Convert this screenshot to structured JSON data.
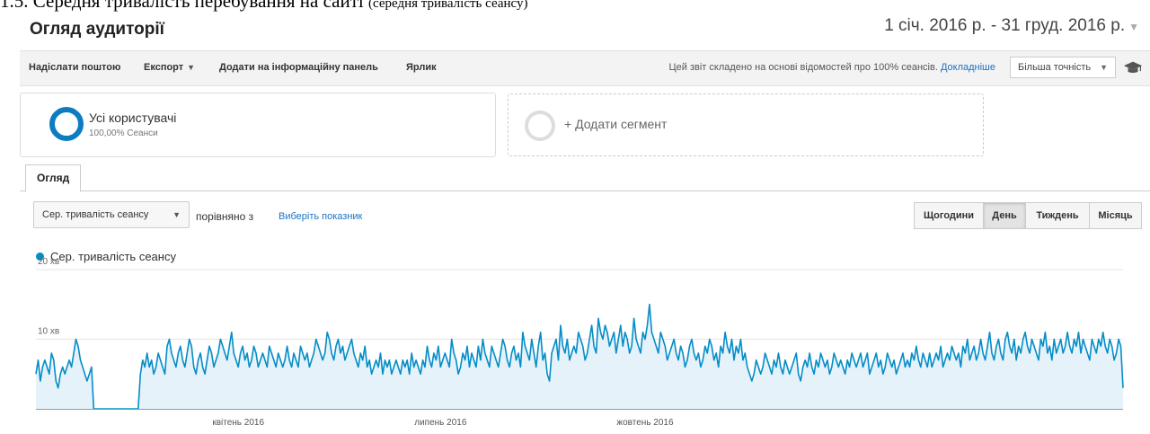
{
  "doc_heading": {
    "main": "1.5. Середня тривалість перебування на сайті",
    "small": "(середня тривалість сеансу)"
  },
  "header": {
    "title": "Огляд аудиторії",
    "date_range": "1 січ. 2016 р. - 31 груд. 2016 р."
  },
  "toolbar": {
    "send_email": "Надіслати поштою",
    "export": "Експорт",
    "add_to_dashboard": "Додати на інформаційну панель",
    "shortcut": "Ярлик",
    "report_note": "Цей звіт складено на основі відомостей про 100% сеансів.",
    "learn_more": "Докладніше",
    "precision": "Більша точність",
    "cap_icon": "graduation-cap-icon"
  },
  "segments": {
    "all_users": "Усі користувачі",
    "all_users_share": "100,00% Сеанси",
    "add_segment": "+ Додати сегмент",
    "ring_color": "#0e7cc1"
  },
  "tabs": [
    {
      "label": "Огляд",
      "active": true
    }
  ],
  "controls": {
    "metric": "Сер. тривалість сеансу",
    "compare_with": "порівняно з",
    "choose_metric": "Виберіть показник",
    "granularity": [
      {
        "label": "Щогодини",
        "active": false
      },
      {
        "label": "День",
        "active": true
      },
      {
        "label": "Тиждень",
        "active": false
      },
      {
        "label": "Місяць",
        "active": false
      }
    ]
  },
  "chart_data": {
    "type": "area",
    "legend": "Сер. тривалість сеансу",
    "color": "#058dc7",
    "y_ticks": [
      "20 хв",
      "10 хв"
    ],
    "ylim": [
      0,
      20
    ],
    "y_unit": "хв",
    "x_labels": [
      "квітень 2016",
      "липень 2016",
      "жовтень 2016"
    ],
    "x": {
      "start": "2016-01-01",
      "end": "2016-12-31",
      "step": "day"
    },
    "grid": true,
    "y": [
      5,
      7,
      4,
      6,
      7,
      6,
      5,
      8,
      7,
      4,
      3,
      5,
      6,
      5,
      6,
      7,
      6,
      8,
      10,
      9,
      7,
      6,
      5,
      4,
      5,
      6,
      0,
      0,
      0,
      0,
      0,
      0,
      0,
      0,
      0,
      0,
      0,
      0,
      0,
      0,
      0,
      0,
      0,
      0,
      0,
      0,
      0,
      5,
      7,
      6,
      8,
      6,
      7,
      5,
      6,
      8,
      7,
      6,
      5,
      9,
      10,
      8,
      7,
      6,
      8,
      9,
      7,
      6,
      8,
      10,
      9,
      6,
      5,
      7,
      8,
      6,
      5,
      7,
      9,
      8,
      6,
      7,
      8,
      10,
      9,
      8,
      7,
      9,
      11,
      8,
      7,
      6,
      8,
      9,
      7,
      8,
      6,
      7,
      9,
      8,
      6,
      7,
      8,
      7,
      6,
      9,
      8,
      7,
      6,
      8,
      7,
      6,
      7,
      9,
      7,
      6,
      8,
      7,
      6,
      9,
      8,
      7,
      8,
      6,
      7,
      8,
      10,
      9,
      8,
      7,
      8,
      11,
      10,
      8,
      7,
      9,
      10,
      8,
      9,
      7,
      8,
      9,
      10,
      8,
      7,
      6,
      8,
      7,
      9,
      6,
      7,
      5,
      6,
      7,
      6,
      8,
      5,
      7,
      6,
      7,
      5,
      6,
      7,
      6,
      5,
      7,
      6,
      7,
      5,
      8,
      6,
      7,
      6,
      5,
      7,
      6,
      9,
      7,
      6,
      8,
      7,
      9,
      6,
      7,
      8,
      7,
      6,
      10,
      8,
      7,
      5,
      6,
      8,
      7,
      9,
      6,
      8,
      7,
      6,
      9,
      7,
      10,
      8,
      7,
      6,
      9,
      8,
      7,
      6,
      8,
      10,
      9,
      7,
      6,
      8,
      9,
      7,
      8,
      6,
      11,
      9,
      8,
      7,
      10,
      8,
      6,
      9,
      11,
      7,
      8,
      5,
      4,
      8,
      9,
      10,
      7,
      12,
      9,
      8,
      10,
      7,
      8,
      9,
      8,
      11,
      10,
      9,
      7,
      8,
      10,
      12,
      9,
      8,
      13,
      11,
      10,
      12,
      11,
      9,
      10,
      11,
      8,
      10,
      12,
      9,
      11,
      10,
      8,
      9,
      13,
      10,
      9,
      8,
      11,
      10,
      12,
      15,
      11,
      10,
      9,
      8,
      11,
      10,
      9,
      7,
      8,
      9,
      10,
      8,
      7,
      9,
      8,
      6,
      7,
      9,
      10,
      8,
      7,
      8,
      6,
      7,
      9,
      8,
      10,
      9,
      7,
      8,
      6,
      9,
      8,
      11,
      9,
      8,
      10,
      7,
      9,
      8,
      10,
      7,
      8,
      6,
      5,
      4,
      5,
      7,
      6,
      5,
      6,
      8,
      7,
      6,
      5,
      7,
      6,
      8,
      6,
      5,
      7,
      6,
      5,
      6,
      7,
      8,
      5,
      4,
      6,
      7,
      6,
      8,
      6,
      5,
      7,
      6,
      8,
      7,
      6,
      7,
      5,
      6,
      8,
      7,
      6,
      7,
      6,
      5,
      7,
      6,
      8,
      7,
      6,
      7,
      8,
      6,
      7,
      8,
      5,
      6,
      7,
      8,
      6,
      7,
      5,
      6,
      8,
      7,
      6,
      7,
      5,
      6,
      7,
      8,
      6,
      7,
      6,
      8,
      7,
      9,
      7,
      6,
      8,
      7,
      6,
      8,
      6,
      7,
      8,
      7,
      9,
      6,
      7,
      8,
      7,
      9,
      8,
      7,
      8,
      6,
      9,
      8,
      10,
      7,
      8,
      9,
      7,
      8,
      10,
      8,
      7,
      9,
      11,
      8,
      7,
      9,
      10,
      8,
      7,
      10,
      11,
      9,
      8,
      10,
      7,
      9,
      8,
      10,
      11,
      9,
      8,
      10,
      9,
      8,
      7,
      10,
      9,
      11,
      8,
      9,
      7,
      10,
      8,
      9,
      10,
      8,
      9,
      11,
      9,
      8,
      10,
      9,
      11,
      8,
      10,
      9,
      8,
      7,
      10,
      9,
      8,
      10,
      9,
      11,
      9,
      8,
      10,
      9,
      7,
      8,
      10,
      9,
      3
    ]
  }
}
